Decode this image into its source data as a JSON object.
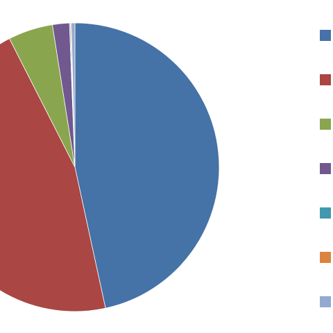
{
  "chart_data": {
    "type": "pie",
    "values": [
      46.6,
      45.9,
      5.0,
      1.9,
      0.1,
      0.1,
      0.4
    ],
    "colors": [
      "#4572a7",
      "#aa4643",
      "#89a54e",
      "#71588f",
      "#4198af",
      "#db843d",
      "#93a9cf"
    ]
  }
}
